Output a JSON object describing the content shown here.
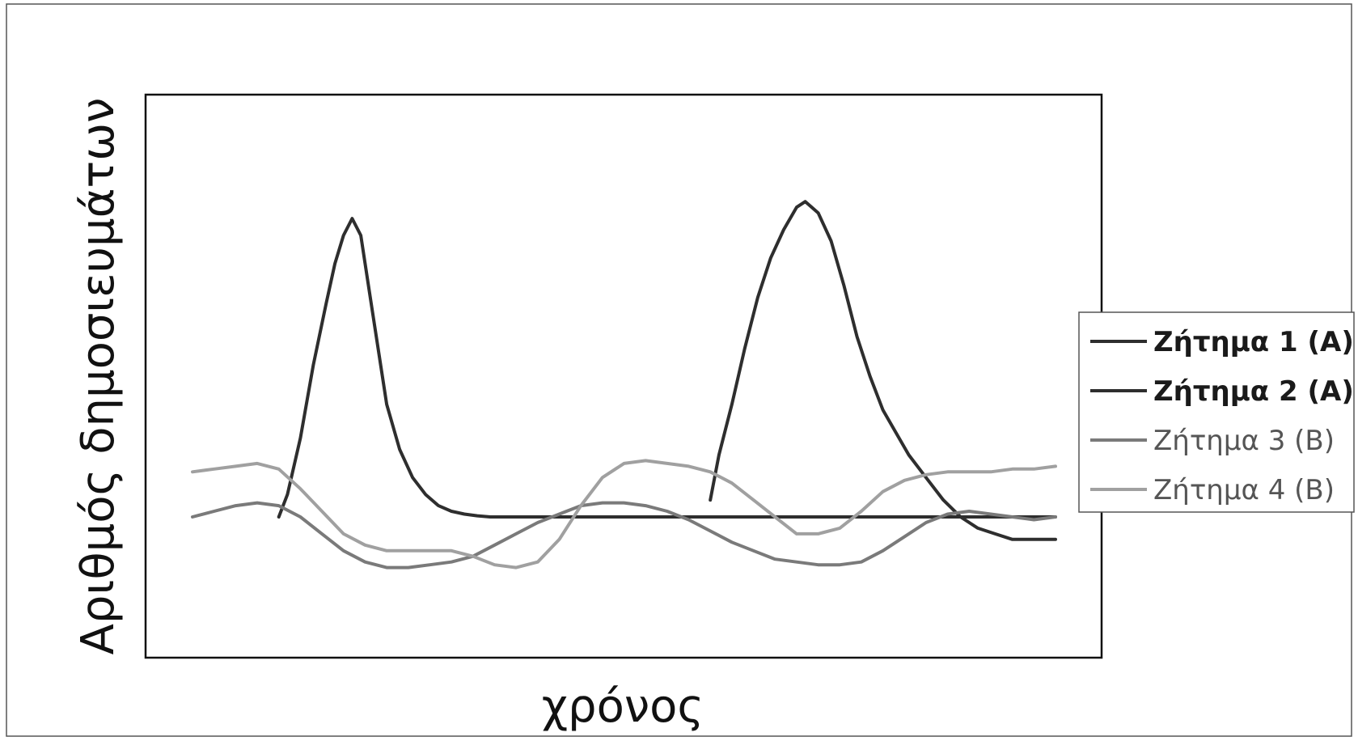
{
  "chart_data": {
    "type": "line",
    "title": "",
    "xlabel": "χρόνος",
    "ylabel": "Αριθμός δημοσιευμάτων",
    "x_ticks": false,
    "y_ticks": false,
    "xlim": [
      0,
      20
    ],
    "ylim": [
      0,
      100
    ],
    "grid": false,
    "legend": "right",
    "series": [
      {
        "name": "Ζήτημα 1 (Α)",
        "color": "#2e2e2e",
        "bold": true,
        "x": [
          2,
          2.2,
          2.5,
          2.8,
          3.1,
          3.3,
          3.5,
          3.7,
          3.9,
          4.0,
          4.1,
          4.3,
          4.5,
          4.8,
          5.1,
          5.4,
          5.7,
          6.0,
          6.3,
          6.6,
          6.9,
          7.2,
          7.6,
          8.0,
          8.5,
          9.0,
          9.5,
          10.0,
          10.5,
          11.0,
          11.5,
          12.0,
          12.5,
          13.0,
          13.5,
          14.0,
          15.0,
          16.0,
          17.0,
          18.0,
          19.0,
          20.0
        ],
        "y": [
          25,
          29,
          39,
          52,
          63,
          70,
          75,
          78,
          75,
          70,
          65,
          55,
          45,
          37,
          32,
          29,
          27,
          26,
          25.5,
          25.2,
          25,
          25,
          25,
          25,
          25,
          25,
          25,
          25,
          25,
          25,
          25,
          25,
          25,
          25,
          25,
          25,
          25,
          25,
          25,
          25,
          25,
          25
        ]
      },
      {
        "name": "Ζήτημα 2 (Α)",
        "color": "#2e2e2e",
        "bold": true,
        "x": [
          12.0,
          12.2,
          12.5,
          12.8,
          13.1,
          13.4,
          13.7,
          14.0,
          14.2,
          14.5,
          14.8,
          15.1,
          15.4,
          15.7,
          16.0,
          16.3,
          16.6,
          17.0,
          17.4,
          17.8,
          18.2,
          18.6,
          19.0,
          19.5,
          20.0
        ],
        "y": [
          28,
          36,
          45,
          55,
          64,
          71,
          76,
          80,
          81,
          79,
          74,
          66,
          57,
          50,
          44,
          40,
          36,
          32,
          28,
          25,
          23,
          22,
          21,
          21,
          21
        ]
      },
      {
        "name": "Ζήτημα 3 (Β)",
        "color": "#7a7a7a",
        "bold": false,
        "x": [
          0,
          0.5,
          1.0,
          1.5,
          2.0,
          2.5,
          3.0,
          3.5,
          4.0,
          4.5,
          5.0,
          5.5,
          6.0,
          6.5,
          7.0,
          7.5,
          8.0,
          8.5,
          9.0,
          9.5,
          10.0,
          10.5,
          11.0,
          11.5,
          12.0,
          12.5,
          13.0,
          13.5,
          14.0,
          14.5,
          15.0,
          15.5,
          16.0,
          16.5,
          17.0,
          17.5,
          18.0,
          18.5,
          19.0,
          19.5,
          20.0
        ],
        "y": [
          25,
          26,
          27,
          27.5,
          27,
          25,
          22,
          19,
          17,
          16,
          16,
          16.5,
          17,
          18,
          20,
          22,
          24,
          25.5,
          27,
          27.5,
          27.5,
          27,
          26,
          24.5,
          22.5,
          20.5,
          19,
          17.5,
          17,
          16.5,
          16.5,
          17,
          19,
          21.5,
          24,
          25.5,
          26,
          25.5,
          25,
          24.5,
          25
        ]
      },
      {
        "name": "Ζήτημα 4 (Β)",
        "color": "#a0a0a0",
        "bold": false,
        "x": [
          0,
          0.5,
          1.0,
          1.5,
          2.0,
          2.5,
          3.0,
          3.5,
          4.0,
          4.5,
          5.0,
          5.5,
          6.0,
          6.5,
          7.0,
          7.5,
          8.0,
          8.5,
          9.0,
          9.5,
          10.0,
          10.5,
          11.0,
          11.5,
          12.0,
          12.5,
          13.0,
          13.5,
          14.0,
          14.5,
          15.0,
          15.5,
          16.0,
          16.5,
          17.0,
          17.5,
          18.0,
          18.5,
          19.0,
          19.5,
          20.0
        ],
        "y": [
          33,
          33.5,
          34,
          34.5,
          33.5,
          30,
          26,
          22,
          20,
          19,
          19,
          19,
          19,
          18,
          16.5,
          16,
          17,
          21,
          27,
          32,
          34.5,
          35,
          34.5,
          34,
          33,
          31,
          28,
          25,
          22,
          22,
          23,
          26,
          29.5,
          31.5,
          32.5,
          33,
          33,
          33,
          33.5,
          33.5,
          34
        ]
      }
    ]
  }
}
